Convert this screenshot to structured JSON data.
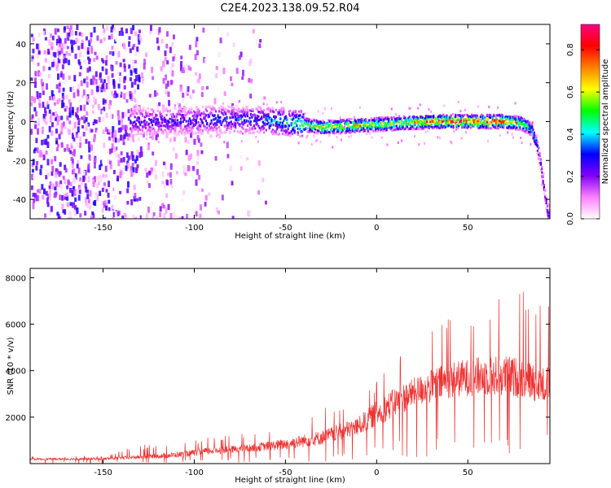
{
  "title": "C2E4.2023.138.09.52.R04",
  "chart_data": [
    {
      "type": "heatmap",
      "xlabel": "Height of straight line (km)",
      "ylabel": "Frequency (Hz)",
      "xlim": [
        -190,
        95
      ],
      "ylim": [
        -50,
        50
      ],
      "xticks": [
        -150,
        -100,
        -50,
        0,
        50
      ],
      "yticks": [
        -40,
        -20,
        0,
        20,
        40
      ],
      "colorbar": {
        "label": "Normalized spectral amplitude",
        "range": [
          0,
          0.92
        ],
        "ticks": [
          0.0,
          0.2,
          0.4,
          0.6,
          0.8
        ],
        "colormap": [
          "#ffffff",
          "#ff80ff",
          "#8000ff",
          "#0000ff",
          "#00ffff",
          "#00ff00",
          "#ffff00",
          "#ff8000",
          "#ff0000",
          "#ff0080"
        ]
      },
      "ridge": {
        "description_points_x": [
          -130,
          -110,
          -90,
          -70,
          -50,
          -30,
          -10,
          10,
          30,
          50,
          70,
          80,
          85,
          88,
          90,
          92,
          94
        ],
        "description_points_y": [
          0,
          0,
          1,
          1,
          0,
          -3,
          -2,
          -1,
          0,
          0,
          0,
          -1,
          -4,
          -12,
          -22,
          -35,
          -48
        ],
        "amplitude": [
          0.3,
          0.3,
          0.35,
          0.35,
          0.5,
          0.75,
          0.75,
          0.7,
          0.85,
          0.92,
          0.9,
          0.7,
          0.5,
          0.4,
          0.35,
          0.3,
          0.3
        ]
      },
      "noise_region_x": [
        -190,
        -60
      ]
    },
    {
      "type": "line",
      "xlabel": "Height of straight line (km)",
      "ylabel": "SNR (10 * v/v)",
      "xlim": [
        -190,
        95
      ],
      "ylim": [
        0,
        8400
      ],
      "xticks": [
        -150,
        -100,
        -50,
        0,
        50
      ],
      "yticks": [
        2000,
        4000,
        6000,
        8000
      ],
      "line_color": "#ee3333",
      "envelope": {
        "x": [
          -190,
          -150,
          -130,
          -110,
          -90,
          -70,
          -50,
          -30,
          -10,
          0,
          10,
          20,
          30,
          40,
          50,
          60,
          70,
          80,
          90,
          95
        ],
        "baseline": [
          150,
          150,
          200,
          250,
          400,
          500,
          600,
          800,
          1200,
          1600,
          2000,
          2400,
          2600,
          2800,
          2900,
          2900,
          2900,
          2800,
          2600,
          2600
        ],
        "mean": [
          200,
          220,
          300,
          400,
          600,
          700,
          900,
          1200,
          1700,
          2300,
          2800,
          3200,
          3500,
          3800,
          3900,
          4000,
          4000,
          3900,
          3600,
          3600
        ],
        "peak": [
          300,
          350,
          800,
          900,
          1200,
          1300,
          1700,
          2400,
          3000,
          3600,
          5000,
          5500,
          6000,
          6500,
          6800,
          7400,
          7600,
          8000,
          8300,
          8000
        ]
      }
    }
  ]
}
